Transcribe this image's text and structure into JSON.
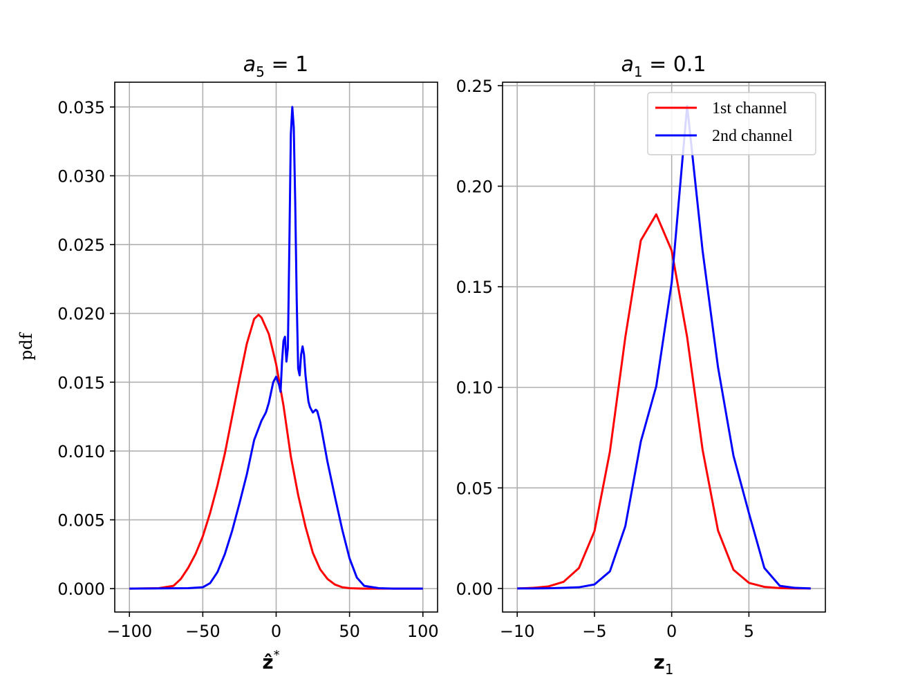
{
  "ylabel": "pdf",
  "chart_data": [
    {
      "type": "line",
      "title": "a5 = 1",
      "title_main": "a",
      "title_sub": "5",
      "title_rest": " = 1",
      "xlabel": "ẑ*",
      "xlabel_main": "ẑ",
      "xlabel_sup": "*",
      "ylabel": "pdf",
      "xlim": [
        -110,
        110
      ],
      "ylim": [
        -0.0017,
        0.0368
      ],
      "xticks": [
        -100,
        -50,
        0,
        50,
        100
      ],
      "xtick_labels": [
        "−100",
        "−50",
        "0",
        "50",
        "100"
      ],
      "yticks": [
        0,
        0.005,
        0.01,
        0.015,
        0.02,
        0.025,
        0.03,
        0.035
      ],
      "ytick_labels": [
        "0.000",
        "0.005",
        "0.010",
        "0.015",
        "0.020",
        "0.025",
        "0.030",
        "0.035"
      ],
      "grid": true,
      "series": [
        {
          "color": "#ff0000",
          "x": [
            -100,
            -80,
            -70,
            -65,
            -60,
            -55,
            -50,
            -45,
            -40,
            -35,
            -30,
            -25,
            -20,
            -15,
            -12,
            -10,
            -5,
            0,
            5,
            10,
            15,
            20,
            25,
            30,
            35,
            40,
            45,
            50,
            60,
            70,
            80,
            100
          ],
          "y": [
            0,
            3e-05,
            0.0002,
            0.0007,
            0.0015,
            0.0025,
            0.0038,
            0.0055,
            0.0075,
            0.0098,
            0.0125,
            0.0152,
            0.0178,
            0.0196,
            0.0199,
            0.0197,
            0.0185,
            0.0163,
            0.0133,
            0.0096,
            0.0068,
            0.0045,
            0.0026,
            0.0014,
            0.0007,
            0.0003,
            0.0001,
            3e-05,
            0,
            0,
            0,
            0
          ]
        },
        {
          "color": "#0000ff",
          "x": [
            -100,
            -60,
            -50,
            -45,
            -40,
            -35,
            -30,
            -25,
            -20,
            -15,
            -10,
            -7,
            -5,
            -2,
            0,
            2,
            3,
            4,
            5,
            6,
            7,
            8,
            9,
            10,
            11,
            12,
            13,
            14,
            15,
            16,
            17,
            18,
            19,
            20,
            21,
            22,
            23,
            25,
            27,
            28,
            30,
            35,
            40,
            45,
            50,
            55,
            60,
            70,
            80,
            100
          ],
          "y": [
            0,
            3e-05,
            0.0001,
            0.0004,
            0.0012,
            0.0025,
            0.0042,
            0.0062,
            0.0083,
            0.0108,
            0.0122,
            0.0128,
            0.0135,
            0.015,
            0.0154,
            0.0148,
            0.0143,
            0.0165,
            0.018,
            0.0183,
            0.0165,
            0.0175,
            0.025,
            0.033,
            0.035,
            0.0335,
            0.028,
            0.021,
            0.016,
            0.0155,
            0.017,
            0.0176,
            0.017,
            0.0155,
            0.0145,
            0.0136,
            0.0132,
            0.0128,
            0.013,
            0.0129,
            0.0121,
            0.0092,
            0.0067,
            0.0043,
            0.0022,
            0.0008,
            0.0002,
            3e-05,
            0,
            0
          ]
        }
      ]
    },
    {
      "type": "line",
      "title": "a1 = 0.1",
      "title_main": "a",
      "title_sub": "1",
      "title_rest": " = 0.1",
      "xlabel": "z1",
      "xlabel_main": "z",
      "xlabel_sub": "1",
      "xlim": [
        -10.95,
        9.95
      ],
      "ylim": [
        -0.0117,
        0.2517
      ],
      "xticks": [
        -10,
        -5,
        0,
        5
      ],
      "xtick_labels": [
        "−10",
        "−5",
        "0",
        "5"
      ],
      "yticks": [
        0,
        0.05,
        0.1,
        0.15,
        0.2,
        0.25
      ],
      "ytick_labels": [
        "0.00",
        "0.05",
        "0.10",
        "0.15",
        "0.20",
        "0.25"
      ],
      "grid": true,
      "legend": {
        "placement": "top-right",
        "entries": [
          "1st channel",
          "2nd channel"
        ]
      },
      "series": [
        {
          "name": "1st channel",
          "color": "#ff0000",
          "x": [
            -10,
            -9,
            -8,
            -7,
            -6,
            -5,
            -4,
            -3,
            -2,
            -1,
            0,
            1,
            2,
            3,
            4,
            5,
            6,
            7,
            8,
            9
          ],
          "y": [
            0,
            0.0003,
            0.001,
            0.0033,
            0.0102,
            0.0285,
            0.068,
            0.125,
            0.173,
            0.186,
            0.168,
            0.125,
            0.069,
            0.0288,
            0.0093,
            0.0028,
            0.0008,
            0.0002,
            0,
            0
          ]
        },
        {
          "name": "2nd channel",
          "color": "#0000ff",
          "x": [
            -10,
            -9,
            -8,
            -7,
            -6,
            -5,
            -4,
            -3,
            -2,
            -1,
            0,
            1,
            2,
            3,
            4,
            5,
            6,
            7,
            8,
            9
          ],
          "y": [
            0,
            0,
            0.0001,
            0.0003,
            0.0006,
            0.002,
            0.0085,
            0.031,
            0.073,
            0.1005,
            0.152,
            0.24,
            0.168,
            0.11,
            0.066,
            0.0375,
            0.0102,
            0.0013,
            0.0003,
            0
          ]
        }
      ]
    }
  ]
}
